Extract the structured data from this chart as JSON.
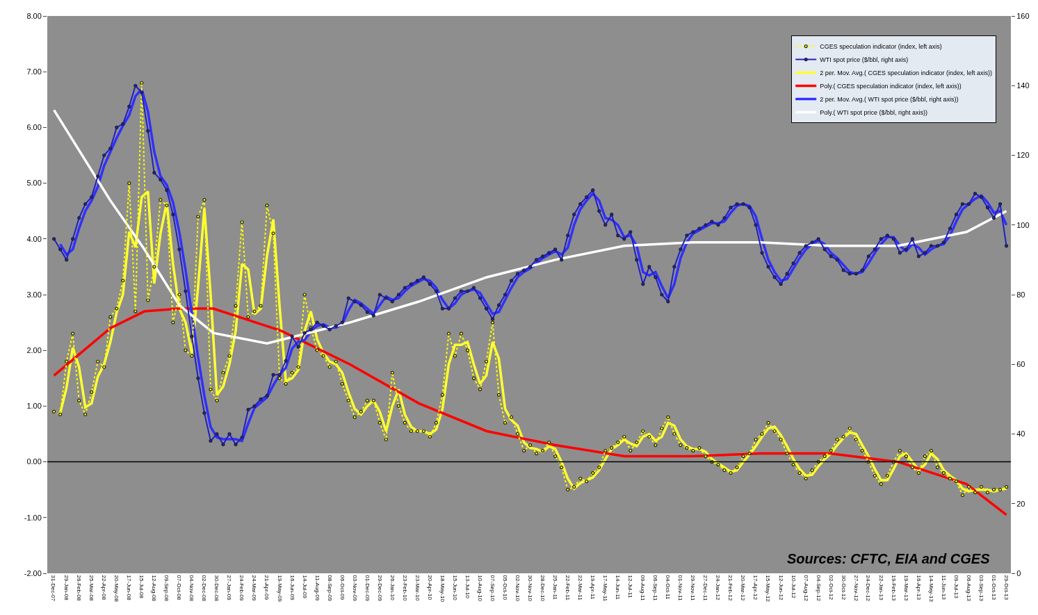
{
  "chart_data": {
    "type": "line",
    "x": [
      "2008-01-01",
      "2008-01-15",
      "2008-01-29",
      "2008-02-12",
      "2008-02-26",
      "2008-03-11",
      "2008-03-25",
      "2008-04-08",
      "2008-04-22",
      "2008-05-06",
      "2008-05-20",
      "2008-06-03",
      "2008-06-17",
      "2008-07-01",
      "2008-07-15",
      "2008-07-29",
      "2008-08-12",
      "2008-08-26",
      "2008-09-09",
      "2008-09-23",
      "2008-10-07",
      "2008-10-21",
      "2008-11-04",
      "2008-11-18",
      "2008-12-02",
      "2008-12-16",
      "2008-12-30",
      "2009-01-13",
      "2009-01-27",
      "2009-02-10",
      "2009-02-24",
      "2009-03-10",
      "2009-03-24",
      "2009-04-07",
      "2009-04-21",
      "2009-05-05",
      "2009-05-19",
      "2009-06-02",
      "2009-06-16",
      "2009-06-30",
      "2009-07-14",
      "2009-07-28",
      "2009-08-11",
      "2009-08-25",
      "2009-09-08",
      "2009-09-22",
      "2009-10-06",
      "2009-10-20",
      "2009-11-03",
      "2009-11-17",
      "2009-12-01",
      "2009-12-15",
      "2009-12-29",
      "2010-01-12",
      "2010-01-26",
      "2010-02-09",
      "2010-02-23",
      "2010-03-09",
      "2010-03-23",
      "2010-04-06",
      "2010-04-20",
      "2010-05-04",
      "2010-05-18",
      "2010-06-01",
      "2010-06-15",
      "2010-06-29",
      "2010-07-13",
      "2010-07-27",
      "2010-08-10",
      "2010-08-24",
      "2010-09-07",
      "2010-09-21",
      "2010-10-05",
      "2010-10-19",
      "2010-11-02",
      "2010-11-16",
      "2010-11-30",
      "2010-12-14",
      "2010-12-28",
      "2011-01-11",
      "2011-01-25",
      "2011-02-08",
      "2011-02-22",
      "2011-03-08",
      "2011-03-22",
      "2011-04-05",
      "2011-04-19",
      "2011-05-03",
      "2011-05-17",
      "2011-05-31",
      "2011-06-14",
      "2011-06-28",
      "2011-07-12",
      "2011-07-26",
      "2011-08-09",
      "2011-08-23",
      "2011-09-06",
      "2011-09-20",
      "2011-10-04",
      "2011-10-18",
      "2011-11-01",
      "2011-11-15",
      "2011-11-29",
      "2011-12-13",
      "2011-12-27",
      "2012-01-10",
      "2012-01-24",
      "2012-02-07",
      "2012-02-21",
      "2012-03-06",
      "2012-03-20",
      "2012-04-03",
      "2012-04-17",
      "2012-05-01",
      "2012-05-15",
      "2012-05-29",
      "2012-06-12",
      "2012-06-26",
      "2012-07-10",
      "2012-07-24",
      "2012-08-07",
      "2012-08-21",
      "2012-09-04",
      "2012-09-18",
      "2012-10-02",
      "2012-10-16",
      "2012-10-30",
      "2012-11-13",
      "2012-11-27",
      "2012-12-11",
      "2012-12-25",
      "2013-01-08",
      "2013-01-22",
      "2013-02-05",
      "2013-02-19",
      "2013-03-05",
      "2013-03-19",
      "2013-04-02",
      "2013-04-16",
      "2013-04-30",
      "2013-05-14",
      "2013-05-28",
      "2013-06-11",
      "2013-06-25",
      "2013-07-09",
      "2013-07-23",
      "2013-08-06",
      "2013-08-20",
      "2013-09-03",
      "2013-09-17",
      "2013-10-01",
      "2013-10-15",
      "2013-10-29"
    ],
    "series": [
      {
        "name": "CGES speculation indicator (index, left axis)",
        "color": "#ffff00",
        "marker": "circle",
        "line_style": "dotted",
        "values": [
          0.9,
          0.85,
          1.8,
          2.3,
          1.1,
          0.85,
          1.25,
          1.8,
          1.7,
          2.6,
          2.75,
          3.25,
          5.0,
          2.7,
          6.8,
          2.9,
          3.5,
          4.7,
          4.6,
          2.5,
          3.0,
          2.0,
          1.9,
          4.4,
          4.7,
          1.3,
          1.1,
          1.6,
          1.9,
          2.8,
          4.3,
          2.6,
          2.7,
          2.8,
          4.6,
          4.1,
          1.5,
          1.4,
          1.6,
          1.7,
          3.0,
          2.4,
          2.0,
          1.9,
          1.7,
          1.8,
          1.4,
          1.1,
          0.8,
          0.9,
          1.1,
          1.1,
          0.7,
          0.4,
          1.6,
          1.0,
          0.7,
          0.55,
          0.55,
          0.55,
          0.45,
          0.7,
          1.2,
          2.3,
          1.9,
          2.3,
          2.0,
          1.5,
          1.3,
          1.8,
          2.5,
          1.2,
          0.7,
          0.8,
          0.5,
          0.2,
          0.3,
          0.15,
          0.2,
          0.35,
          0.1,
          -0.1,
          -0.5,
          -0.45,
          -0.3,
          -0.35,
          -0.2,
          -0.1,
          0.2,
          0.25,
          0.35,
          0.45,
          0.2,
          0.35,
          0.55,
          0.45,
          0.3,
          0.6,
          0.8,
          0.5,
          0.3,
          0.25,
          0.2,
          0.25,
          0.1,
          0.0,
          -0.05,
          -0.15,
          -0.2,
          -0.1,
          0.1,
          0.15,
          0.4,
          0.5,
          0.7,
          0.55,
          0.4,
          0.15,
          -0.05,
          -0.2,
          -0.3,
          -0.15,
          0.0,
          0.1,
          0.2,
          0.4,
          0.45,
          0.6,
          0.4,
          0.2,
          0.0,
          -0.25,
          -0.4,
          -0.25,
          0.0,
          0.2,
          0.1,
          -0.1,
          -0.2,
          0.1,
          0.2,
          -0.1,
          -0.2,
          -0.3,
          -0.35,
          -0.6,
          -0.45,
          -0.55,
          -0.45,
          -0.55,
          -0.5,
          -0.5,
          -0.45
        ]
      },
      {
        "name": "WTI spot price ($/bbl, right axis)",
        "color": "#2020c0",
        "axis": "y2",
        "marker": "circle",
        "line_style": "solid",
        "values": [
          96,
          93,
          90,
          96,
          102,
          106,
          108,
          114,
          120,
          122,
          128,
          129,
          134,
          140,
          138,
          127,
          115,
          113,
          110,
          103,
          93,
          81,
          68,
          56,
          46,
          38,
          40,
          37,
          40,
          37,
          39,
          47,
          48,
          50,
          51,
          57,
          57,
          61,
          68,
          65,
          69,
          70,
          72,
          71,
          70,
          71,
          72,
          79,
          78,
          77,
          75,
          74,
          80,
          79,
          78,
          80,
          82,
          83,
          84,
          85,
          83,
          81,
          76,
          76,
          79,
          81,
          81,
          82,
          79,
          76,
          73,
          77,
          80,
          84,
          86,
          87,
          88,
          90,
          91,
          92,
          93,
          90,
          97,
          103,
          106,
          108,
          110,
          104,
          100,
          103,
          97,
          96,
          98,
          90,
          83,
          88,
          85,
          80,
          78,
          88,
          93,
          97,
          98,
          99,
          100,
          101,
          100,
          102,
          105,
          106,
          106,
          105,
          100,
          92,
          88,
          85,
          83,
          86,
          89,
          92,
          94,
          95,
          96,
          93,
          91,
          90,
          87,
          86,
          86,
          87,
          91,
          93,
          96,
          97,
          96,
          92,
          93,
          96,
          91,
          92,
          94,
          94,
          95,
          99,
          103,
          106,
          106,
          109,
          108,
          105,
          102,
          106,
          94
        ]
      },
      {
        "name": "2 per. Mov. Avg.( CGES speculation indicator (index, left axis))",
        "color": "#ffff33",
        "marker": "none",
        "line_style": "solid",
        "values": [
          null,
          0.88,
          1.33,
          2.05,
          1.7,
          0.98,
          1.05,
          1.53,
          1.75,
          2.15,
          2.68,
          3.0,
          4.13,
          3.85,
          4.75,
          4.85,
          3.2,
          4.1,
          4.65,
          3.55,
          2.75,
          2.5,
          1.95,
          3.15,
          4.55,
          3.0,
          1.2,
          1.35,
          1.75,
          2.35,
          3.55,
          3.45,
          2.65,
          2.75,
          3.7,
          4.35,
          2.8,
          1.45,
          1.5,
          1.65,
          2.35,
          2.7,
          2.2,
          1.95,
          1.8,
          1.75,
          1.6,
          1.25,
          0.95,
          0.85,
          1.0,
          1.1,
          0.9,
          0.55,
          1.0,
          1.3,
          0.85,
          0.63,
          0.55,
          0.55,
          0.5,
          0.58,
          0.95,
          1.75,
          2.1,
          2.1,
          2.15,
          1.75,
          1.4,
          1.55,
          2.15,
          1.85,
          0.95,
          0.75,
          0.65,
          0.35,
          0.25,
          0.23,
          0.18,
          0.28,
          0.23,
          0.0,
          -0.3,
          -0.48,
          -0.38,
          -0.33,
          -0.28,
          -0.15,
          0.05,
          0.23,
          0.3,
          0.4,
          0.33,
          0.28,
          0.45,
          0.5,
          0.38,
          0.45,
          0.7,
          0.65,
          0.4,
          0.28,
          0.23,
          0.23,
          0.18,
          0.05,
          -0.03,
          -0.1,
          -0.18,
          -0.15,
          0.0,
          0.13,
          0.28,
          0.45,
          0.6,
          0.63,
          0.48,
          0.28,
          0.05,
          -0.13,
          -0.25,
          -0.23,
          -0.08,
          0.05,
          0.15,
          0.3,
          0.43,
          0.53,
          0.5,
          0.3,
          0.1,
          -0.13,
          -0.33,
          -0.33,
          -0.13,
          0.1,
          0.15,
          0.0,
          -0.15,
          -0.05,
          0.15,
          0.05,
          -0.15,
          -0.25,
          -0.33,
          -0.48,
          -0.53,
          -0.5,
          -0.5,
          -0.5,
          -0.53,
          -0.5,
          -0.48
        ]
      },
      {
        "name": "Poly.( CGES speculation indicator (index, left axis))",
        "color": "#ff0000",
        "marker": "none",
        "line_style": "solid",
        "x": [
          "2008-01-01",
          "2008-05-06",
          "2008-07-21",
          "2008-10-07",
          "2008-12-22",
          "2009-05-23",
          "2009-10-23",
          "2010-03-26",
          "2010-08-25",
          "2011-01-25",
          "2011-06-28",
          "2011-11-28",
          "2012-04-28",
          "2012-09-29",
          "2013-03-01",
          "2013-08-01",
          "2013-10-29"
        ],
        "values": [
          1.55,
          2.4,
          2.7,
          2.75,
          2.75,
          2.35,
          1.75,
          1.05,
          0.55,
          0.3,
          0.1,
          0.1,
          0.15,
          0.15,
          0.0,
          -0.4,
          -0.95
        ]
      },
      {
        "name": "2 per. Mov. Avg.( WTI spot price ($/bbl, right axis))",
        "color": "#3030ff",
        "axis": "y2",
        "marker": "none",
        "line_style": "solid",
        "values": [
          null,
          94.5,
          91.5,
          93,
          99,
          104,
          107,
          111,
          117,
          121,
          125,
          128.5,
          131.5,
          137,
          139,
          132.5,
          121,
          114,
          111.5,
          106.5,
          98,
          87,
          74.5,
          62,
          51,
          42,
          39,
          38.5,
          38.5,
          38.5,
          38,
          43,
          47.5,
          49,
          50.5,
          54,
          57,
          59,
          64.5,
          66.5,
          67,
          69.5,
          71,
          71.5,
          70.5,
          70.5,
          71.5,
          75.5,
          78.5,
          77.5,
          76,
          74.5,
          77,
          79.5,
          78.5,
          79,
          81,
          82.5,
          83.5,
          84.5,
          84,
          82,
          78.5,
          76,
          77.5,
          80,
          81,
          81.5,
          80.5,
          77.5,
          74.5,
          75,
          78.5,
          82,
          85,
          86.5,
          87.5,
          89,
          90.5,
          91.5,
          92.5,
          91.5,
          93.5,
          100,
          104.5,
          107,
          109,
          107,
          102,
          101.5,
          100,
          96.5,
          97,
          94,
          86.5,
          85.5,
          86.5,
          82.5,
          79,
          83,
          90.5,
          95,
          97.5,
          98.5,
          99.5,
          100.5,
          100.5,
          101,
          103.5,
          105.5,
          106,
          105.5,
          102.5,
          96,
          90,
          86.5,
          84,
          84.5,
          87.5,
          90.5,
          93,
          94.5,
          95.5,
          94.5,
          92,
          90.5,
          88.5,
          86.5,
          86,
          86.5,
          89,
          92,
          94.5,
          96.5,
          96.5,
          94,
          92.5,
          94.5,
          93.5,
          91.5,
          93,
          94,
          94.5,
          97,
          101,
          104.5,
          106,
          107.5,
          108.5,
          106.5,
          103.5,
          104,
          100
        ]
      },
      {
        "name": "Poly.( WTI spot price ($/bbl, right axis))",
        "color": "#ffffff",
        "axis": "y2",
        "marker": "none",
        "line_style": "solid",
        "x": [
          "2008-01-01",
          "2008-05-06",
          "2008-07-21",
          "2008-10-07",
          "2008-12-22",
          "2009-04-21",
          "2009-10-23",
          "2010-03-26",
          "2010-08-25",
          "2011-01-25",
          "2011-06-28",
          "2011-11-28",
          "2012-04-28",
          "2012-09-29",
          "2013-03-01",
          "2013-08-01",
          "2013-10-29"
        ],
        "values": [
          133,
          107,
          93,
          77,
          69,
          66,
          72,
          78,
          85,
          90,
          94,
          95,
          95,
          94,
          94,
          98,
          104
        ]
      }
    ],
    "xlim": [
      "2007-12-17",
      "2013-11-08"
    ],
    "xticks": [
      {
        "value": "2007-12-31",
        "label": "31-Dec-07"
      },
      {
        "value": "2008-01-29",
        "label": "29-Jan-08"
      },
      {
        "value": "2008-02-26",
        "label": "26-Feb-08"
      },
      {
        "value": "2008-03-25",
        "label": "25-Mar-08"
      },
      {
        "value": "2008-04-22",
        "label": "22-Apr-08"
      },
      {
        "value": "2008-05-20",
        "label": "20-May-08"
      },
      {
        "value": "2008-06-17",
        "label": "17-Jun-08"
      },
      {
        "value": "2008-07-15",
        "label": "15-Jul-08"
      },
      {
        "value": "2008-08-12",
        "label": "12-Aug-08"
      },
      {
        "value": "2008-09-09",
        "label": "09-Sep-08"
      },
      {
        "value": "2008-10-07",
        "label": "07-Oct-08"
      },
      {
        "value": "2008-11-04",
        "label": "04-Nov-08"
      },
      {
        "value": "2008-12-02",
        "label": "02-Dec-08"
      },
      {
        "value": "2008-12-30",
        "label": "30-Dec-08"
      },
      {
        "value": "2009-01-27",
        "label": "27-Jan-09"
      },
      {
        "value": "2009-02-24",
        "label": "24-Feb-09"
      },
      {
        "value": "2009-03-24",
        "label": "24-Mar-09"
      },
      {
        "value": "2009-04-21",
        "label": "21-Apr-09"
      },
      {
        "value": "2009-05-19",
        "label": "19-May-09"
      },
      {
        "value": "2009-06-16",
        "label": "16-Jun-09"
      },
      {
        "value": "2009-07-14",
        "label": "14-Jul-09"
      },
      {
        "value": "2009-08-11",
        "label": "11-Aug-09"
      },
      {
        "value": "2009-09-08",
        "label": "08-Sep-09"
      },
      {
        "value": "2009-10-06",
        "label": "06-Oct-09"
      },
      {
        "value": "2009-11-03",
        "label": "03-Nov-09"
      },
      {
        "value": "2009-12-01",
        "label": "01-Dec-09"
      },
      {
        "value": "2009-12-29",
        "label": "29-Dec-09"
      },
      {
        "value": "2010-01-26",
        "label": "26-Jan-10"
      },
      {
        "value": "2010-02-23",
        "label": "23-Feb-10"
      },
      {
        "value": "2010-03-23",
        "label": "23-Mar-10"
      },
      {
        "value": "2010-04-20",
        "label": "20-Apr-10"
      },
      {
        "value": "2010-05-18",
        "label": "18-May-10"
      },
      {
        "value": "2010-06-15",
        "label": "15-Jun-10"
      },
      {
        "value": "2010-07-13",
        "label": "13-Jul-10"
      },
      {
        "value": "2010-08-10",
        "label": "10-Aug-10"
      },
      {
        "value": "2010-09-07",
        "label": "07-Sep-10"
      },
      {
        "value": "2010-10-05",
        "label": "05-Oct-10"
      },
      {
        "value": "2010-11-02",
        "label": "02-Nov-10"
      },
      {
        "value": "2010-11-30",
        "label": "30-Nov-10"
      },
      {
        "value": "2010-12-28",
        "label": "28-Dec-10"
      },
      {
        "value": "2011-01-25",
        "label": "25-Jan-11"
      },
      {
        "value": "2011-02-22",
        "label": "22-Feb-11"
      },
      {
        "value": "2011-03-22",
        "label": "22-Mar-11"
      },
      {
        "value": "2011-04-19",
        "label": "19-Apr-11"
      },
      {
        "value": "2011-05-17",
        "label": "17-May-11"
      },
      {
        "value": "2011-06-14",
        "label": "14-Jun-11"
      },
      {
        "value": "2011-07-12",
        "label": "12-Jul-11"
      },
      {
        "value": "2011-08-09",
        "label": "09-Aug-11"
      },
      {
        "value": "2011-09-06",
        "label": "06-Sep-11"
      },
      {
        "value": "2011-10-04",
        "label": "04-Oct-11"
      },
      {
        "value": "2011-11-01",
        "label": "01-Nov-11"
      },
      {
        "value": "2011-11-29",
        "label": "29-Nov-11"
      },
      {
        "value": "2011-12-27",
        "label": "27-Dec-11"
      },
      {
        "value": "2012-01-24",
        "label": "24-Jan-12"
      },
      {
        "value": "2012-02-21",
        "label": "21-Feb-12"
      },
      {
        "value": "2012-03-20",
        "label": "20-Mar-12"
      },
      {
        "value": "2012-04-17",
        "label": "17-Apr-12"
      },
      {
        "value": "2012-05-15",
        "label": "15-May-12"
      },
      {
        "value": "2012-06-12",
        "label": "12-Jun-12"
      },
      {
        "value": "2012-07-10",
        "label": "10-Jul-12"
      },
      {
        "value": "2012-08-07",
        "label": "07-Aug-12"
      },
      {
        "value": "2012-09-04",
        "label": "04-Sep-12"
      },
      {
        "value": "2012-10-02",
        "label": "02-Oct-12"
      },
      {
        "value": "2012-10-30",
        "label": "30-Oct-12"
      },
      {
        "value": "2012-11-27",
        "label": "27-Nov-12"
      },
      {
        "value": "2012-12-24",
        "label": "24-Dec-12"
      },
      {
        "value": "2013-01-22",
        "label": "22-Jan-13"
      },
      {
        "value": "2013-02-19",
        "label": "19-Feb-13"
      },
      {
        "value": "2013-03-19",
        "label": "19-Mar-13"
      },
      {
        "value": "2013-04-16",
        "label": "16-Apr-13"
      },
      {
        "value": "2013-05-14",
        "label": "14-May-13"
      },
      {
        "value": "2013-06-11",
        "label": "11-Jun-13"
      },
      {
        "value": "2013-07-09",
        "label": "09-Jul-13"
      },
      {
        "value": "2013-08-06",
        "label": "06-Aug-13"
      },
      {
        "value": "2013-09-03",
        "label": "03-Sep-13"
      },
      {
        "value": "2013-10-01",
        "label": "01-Oct-13"
      },
      {
        "value": "2013-10-29",
        "label": "29-Oct-13"
      }
    ],
    "ylim": [
      -2,
      8
    ],
    "yticks": [
      {
        "value": -2,
        "label": "-2.00"
      },
      {
        "value": -1,
        "label": "-1.00"
      },
      {
        "value": 0,
        "label": "0.00"
      },
      {
        "value": 1,
        "label": "1.00"
      },
      {
        "value": 2,
        "label": "2.00"
      },
      {
        "value": 3,
        "label": "3.00"
      },
      {
        "value": 4,
        "label": "4.00"
      },
      {
        "value": 5,
        "label": "5.00"
      },
      {
        "value": 6,
        "label": "6.00"
      },
      {
        "value": 7,
        "label": "7.00"
      },
      {
        "value": 8,
        "label": "8.00"
      }
    ],
    "y2lim": [
      0,
      160
    ],
    "y2ticks": [
      0,
      20,
      40,
      60,
      80,
      100,
      120,
      140,
      160
    ],
    "ref_lines": [
      {
        "axis": "y",
        "value": 0,
        "color": "#000000",
        "line_style": "solid"
      }
    ],
    "legend": "top right",
    "grid": false,
    "annotations": [
      "Sources: CFTC, EIA and CGES"
    ]
  }
}
